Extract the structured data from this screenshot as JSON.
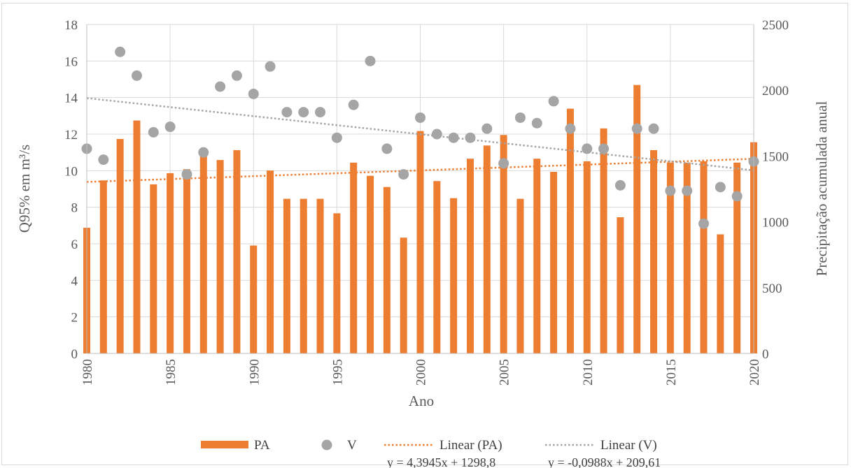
{
  "chart_data": {
    "type": "bar",
    "xlabel": "Ano",
    "ylabel_left": "Q95% em m³/s",
    "ylabel_right": "Precipitação acumulada anual",
    "ylim_left": [
      0,
      18
    ],
    "ylim_right": [
      0,
      2500
    ],
    "left_ticks": [
      "0",
      "2",
      "4",
      "6",
      "8",
      "10",
      "12",
      "14",
      "16",
      "18"
    ],
    "right_ticks": [
      "0",
      "500",
      "1000",
      "1500",
      "2000",
      "2500"
    ],
    "x_ticks": [
      "1980",
      "1985",
      "1990",
      "1995",
      "2000",
      "2005",
      "2010",
      "2015",
      "2020"
    ],
    "grid": true,
    "legend_position": "bottom",
    "years": [
      1980,
      1981,
      1982,
      1983,
      1984,
      1985,
      1986,
      1987,
      1988,
      1989,
      1990,
      1991,
      1992,
      1993,
      1994,
      1995,
      1996,
      1997,
      1998,
      1999,
      2000,
      2001,
      2002,
      2003,
      2004,
      2005,
      2006,
      2007,
      2008,
      2009,
      2010,
      2011,
      2012,
      2013,
      2014,
      2015,
      2016,
      2017,
      2018,
      2019,
      2020
    ],
    "series": [
      {
        "name": "PA",
        "kind": "bar",
        "axis": "right",
        "color": "#ed7d31",
        "values": [
          955,
          1315,
          1630,
          1770,
          1285,
          1370,
          1400,
          1505,
          1470,
          1545,
          820,
          1390,
          1175,
          1175,
          1175,
          1065,
          1450,
          1350,
          1265,
          880,
          1690,
          1310,
          1180,
          1480,
          1580,
          1660,
          1175,
          1480,
          1380,
          1860,
          1460,
          1710,
          1035,
          2040,
          1545,
          1450,
          1450,
          1460,
          905,
          1450,
          1605
        ]
      },
      {
        "name": "V",
        "kind": "scatter",
        "axis": "left",
        "color": "#a5a5a5",
        "values": [
          11.2,
          10.6,
          16.5,
          15.2,
          12.1,
          12.4,
          9.8,
          11.0,
          14.6,
          15.2,
          14.2,
          15.7,
          13.2,
          13.2,
          13.2,
          11.8,
          13.6,
          16.0,
          11.2,
          9.8,
          12.9,
          12.0,
          11.8,
          11.8,
          12.3,
          10.4,
          12.9,
          12.6,
          13.8,
          12.3,
          11.2,
          11.2,
          9.2,
          12.3,
          12.3,
          8.9,
          8.9,
          7.1,
          9.1,
          8.6,
          10.5
        ]
      }
    ],
    "trendlines": [
      {
        "name": "Linear (PA)",
        "axis": "right",
        "color": "#ed7d31",
        "start": 1303.2,
        "end": 1479.0,
        "equation": "y = 4,3945x + 1298,8"
      },
      {
        "name": "Linear (V)",
        "axis": "left",
        "color": "#a5a5a5",
        "start": 13.97,
        "end": 10.02,
        "equation": "y = -0,0988x + 209,61"
      }
    ]
  }
}
